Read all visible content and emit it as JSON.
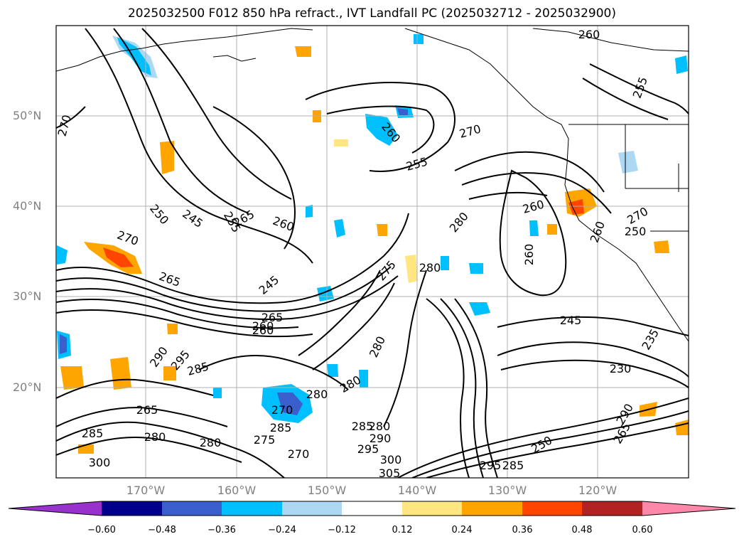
{
  "title": "2025032500 F012 850 hPa refract., IVT Landfall PC (2025032712 - 2025032900)",
  "lat_labels": [
    "50°N",
    "40°N",
    "30°N",
    "20°N"
  ],
  "lon_labels": [
    "170°W",
    "160°W",
    "150°W",
    "140°W",
    "130°W",
    "120°W"
  ],
  "contour_labels": [
    "260",
    "255",
    "270",
    "260",
    "255",
    "270",
    "250",
    "245",
    "265",
    "260",
    "255",
    "270",
    "265",
    "260",
    "245",
    "280",
    "260",
    "260",
    "245",
    "265",
    "260",
    "275",
    "280",
    "290",
    "295",
    "285",
    "280",
    "270",
    "285",
    "280",
    "285",
    "280",
    "290",
    "275",
    "270",
    "295",
    "300",
    "305",
    "295",
    "285",
    "250",
    "230",
    "235",
    "270",
    "260",
    "250",
    "265",
    "290",
    "285",
    "300",
    "280",
    "265",
    "280",
    "280"
  ],
  "colorbar": {
    "ticks": [
      "−0.60",
      "−0.48",
      "−0.36",
      "−0.24",
      "−0.12",
      "0.12",
      "0.24",
      "0.36",
      "0.48",
      "0.60"
    ],
    "colors": [
      "#9932cc",
      "#00008b",
      "#3a5fcd",
      "#00bfff",
      "#add8f4",
      "#ffffff",
      "#ffe680",
      "#ffa500",
      "#ff4500",
      "#b22222",
      "#ff88aa"
    ]
  }
}
